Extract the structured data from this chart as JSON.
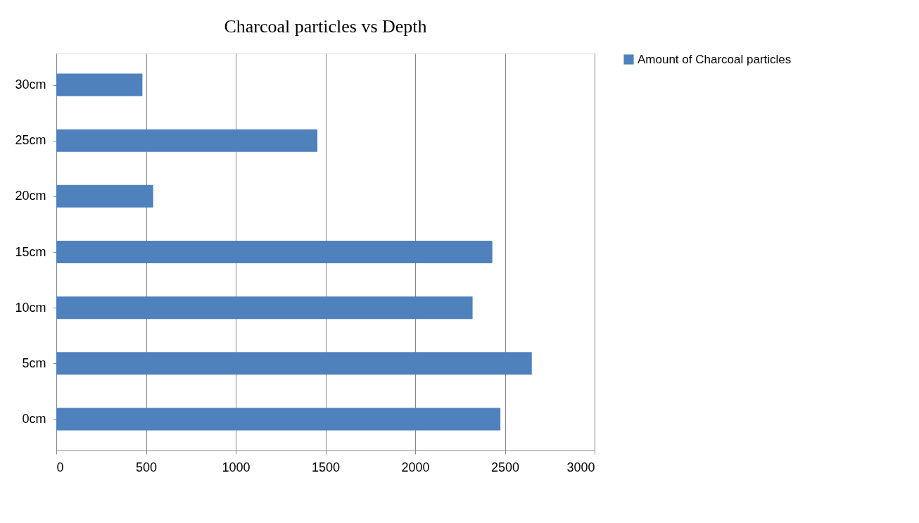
{
  "chart_data": {
    "type": "bar",
    "orientation": "horizontal",
    "title": "Charcoal particles vs Depth",
    "categories": [
      "30cm",
      "25cm",
      "20cm",
      "15cm",
      "10cm",
      "5cm",
      "0cm"
    ],
    "series": [
      {
        "name": "Amount of Charcoal particles",
        "color": "#4f81bd",
        "values": [
          480,
          1455,
          540,
          2430,
          2320,
          2650,
          2475
        ]
      }
    ],
    "xlim": [
      0,
      3000
    ],
    "xticks": [
      0,
      500,
      1000,
      1500,
      2000,
      2500,
      3000
    ],
    "grid": "x",
    "legend": "right"
  }
}
